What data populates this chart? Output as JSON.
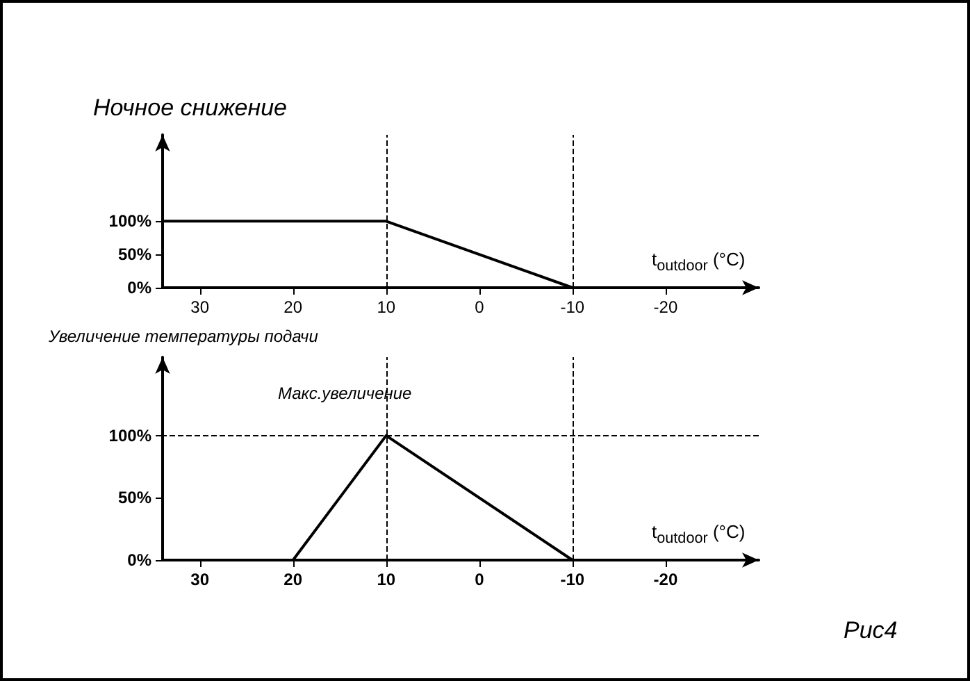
{
  "chart_data": [
    {
      "type": "line",
      "title": "Ночное снижение",
      "xlabel": "t$_{outdoor}$ (°C)",
      "series": [
        {
          "color": "#000000",
          "x": [
            34,
            10,
            -10
          ],
          "values": [
            100,
            100,
            0
          ]
        }
      ],
      "xlim": [
        34,
        -30
      ],
      "xticks": [
        30,
        20,
        10,
        0,
        -10,
        -20
      ],
      "ylim": [
        0,
        230
      ],
      "yticks": [
        {
          "value": 0,
          "label": "0%"
        },
        {
          "value": 50,
          "label": "50%"
        },
        {
          "value": 100,
          "label": "100%"
        }
      ],
      "ref_lines": [
        {
          "axis": "x",
          "value": 10,
          "line_style": "dashed",
          "color": "#000000"
        },
        {
          "axis": "x",
          "value": -10,
          "line_style": "dashed",
          "color": "#000000"
        }
      ],
      "grid": false,
      "marker": "none",
      "line_style": "solid"
    },
    {
      "type": "line",
      "title": "Увеличение температуры подачи",
      "xlabel": "t$_{outdoor}$ (°C)",
      "series": [
        {
          "color": "#000000",
          "x": [
            20,
            10,
            -10
          ],
          "values": [
            0,
            100,
            0
          ]
        }
      ],
      "xlim": [
        34,
        -30
      ],
      "xticks": [
        30,
        20,
        10,
        0,
        -10,
        -20
      ],
      "ylim": [
        0,
        163
      ],
      "yticks": [
        {
          "value": 0,
          "label": "0%"
        },
        {
          "value": 50,
          "label": "50%"
        },
        {
          "value": 100,
          "label": "100%"
        }
      ],
      "ref_lines": [
        {
          "axis": "x",
          "value": 10,
          "line_style": "dashed",
          "color": "#000000"
        },
        {
          "axis": "x",
          "value": -10,
          "line_style": "dashed",
          "color": "#000000"
        },
        {
          "axis": "y",
          "value": 100,
          "line_style": "dashed",
          "color": "#000000"
        }
      ],
      "annotations": [
        "Макс.увеличение",
        "Рис4"
      ],
      "grid": false,
      "marker": "none",
      "line_style": "solid"
    }
  ]
}
